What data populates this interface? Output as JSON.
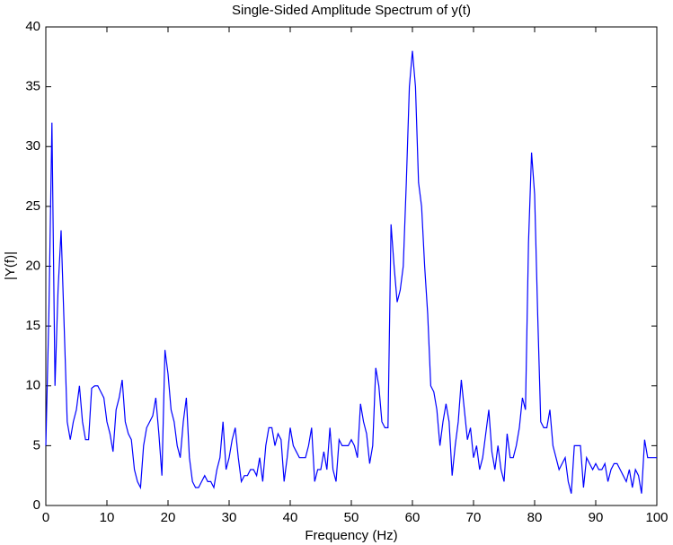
{
  "chart_data": {
    "type": "line",
    "title": "Single-Sided Amplitude Spectrum of y(t)",
    "xlabel": "Frequency (Hz)",
    "ylabel": "|Y(f)|",
    "xlim": [
      0,
      100
    ],
    "ylim": [
      0,
      40
    ],
    "xticks": [
      0,
      10,
      20,
      30,
      40,
      50,
      60,
      70,
      80,
      90,
      100
    ],
    "yticks": [
      0,
      5,
      10,
      15,
      20,
      25,
      30,
      35,
      40
    ],
    "x": [
      0,
      0.5,
      1,
      1.5,
      2,
      2.5,
      3,
      3.5,
      4,
      4.5,
      5,
      5.5,
      6,
      6.5,
      7,
      7.5,
      8,
      8.5,
      9,
      9.5,
      10,
      10.5,
      11,
      11.5,
      12,
      12.5,
      13,
      13.5,
      14,
      14.5,
      15,
      15.5,
      16,
      16.5,
      17,
      17.5,
      18,
      18.5,
      19,
      19.5,
      20,
      20.5,
      21,
      21.5,
      22,
      22.5,
      23,
      23.5,
      24,
      24.5,
      25,
      25.5,
      26,
      26.5,
      27,
      27.5,
      28,
      28.5,
      29,
      29.5,
      30,
      30.5,
      31,
      31.5,
      32,
      32.5,
      33,
      33.5,
      34,
      34.5,
      35,
      35.5,
      36,
      36.5,
      37,
      37.5,
      38,
      38.5,
      39,
      39.5,
      40,
      40.5,
      41,
      41.5,
      42,
      42.5,
      43,
      43.5,
      44,
      44.5,
      45,
      45.5,
      46,
      46.5,
      47,
      47.5,
      48,
      48.5,
      49,
      49.5,
      50,
      50.5,
      51,
      51.5,
      52,
      52.5,
      53,
      53.5,
      54,
      54.5,
      55,
      55.5,
      56,
      56.5,
      57,
      57.5,
      58,
      58.5,
      59,
      59.5,
      60,
      60.5,
      61,
      61.5,
      62,
      62.5,
      63,
      63.5,
      64,
      64.5,
      65,
      65.5,
      66,
      66.5,
      67,
      67.5,
      68,
      68.5,
      69,
      69.5,
      70,
      70.5,
      71,
      71.5,
      72,
      72.5,
      73,
      73.5,
      74,
      74.5,
      75,
      75.5,
      76,
      76.5,
      77,
      77.5,
      78,
      78.5,
      79,
      79.5,
      80,
      80.5,
      81,
      81.5,
      82,
      82.5,
      83,
      83.5,
      84,
      84.5,
      85,
      85.5,
      86,
      86.5,
      87,
      87.5,
      88,
      88.5,
      89,
      89.5,
      90,
      90.5,
      91,
      91.5,
      92,
      92.5,
      93,
      93.5,
      94,
      94.5,
      95,
      95.5,
      96,
      96.5,
      97,
      97.5,
      98,
      98.5,
      99,
      99.5,
      100
    ],
    "series": [
      {
        "color": "#0000ff",
        "values": [
          5,
          16,
          32,
          10,
          18,
          23,
          15,
          7,
          5.5,
          7,
          8,
          10,
          7,
          5.5,
          5.5,
          9.8,
          10,
          10,
          9.5,
          9,
          7,
          6,
          4.5,
          8,
          9,
          10.5,
          7,
          6,
          5.5,
          3,
          2,
          1.5,
          5,
          6.5,
          7,
          7.5,
          9,
          6,
          2.5,
          13,
          11,
          8,
          7,
          5,
          4,
          7,
          9,
          4,
          2,
          1.5,
          1.5,
          2,
          2.5,
          2,
          2,
          1.5,
          3,
          4,
          7,
          3,
          4,
          5.5,
          6.5,
          4,
          2,
          2.5,
          2.5,
          3,
          3,
          2.5,
          4,
          2,
          5,
          6.5,
          6.5,
          5,
          6,
          5.5,
          2,
          4,
          6.5,
          5,
          4.5,
          4,
          4,
          4,
          5,
          6.5,
          2,
          3,
          3,
          4.5,
          3,
          6.5,
          3,
          2,
          5.5,
          5,
          5,
          5,
          5.5,
          5,
          4,
          8.5,
          7,
          6,
          3.5,
          5,
          11.5,
          10,
          7,
          6.5,
          6.5,
          23.5,
          20,
          17,
          18,
          20,
          27,
          35,
          38,
          35,
          27,
          25,
          20,
          16,
          10,
          9.5,
          8,
          5,
          7,
          8.5,
          7,
          2.5,
          5,
          7,
          10.5,
          8,
          5.5,
          6.5,
          4,
          5,
          3,
          4,
          6,
          8,
          4.5,
          3,
          5,
          3,
          2,
          6,
          4,
          4,
          5,
          6.5,
          9,
          8,
          22,
          29.5,
          26,
          16,
          7,
          6.5,
          6.5,
          8,
          5,
          4,
          3,
          3.5,
          4,
          2,
          1,
          5,
          5,
          5,
          1.5,
          4,
          3.5,
          3,
          3.5,
          3,
          3,
          3.5,
          2,
          3,
          3.5,
          3.5,
          3,
          2.5,
          2,
          3,
          1.5,
          3,
          2.5,
          1,
          5.5,
          4,
          4,
          4,
          4
        ]
      }
    ]
  }
}
